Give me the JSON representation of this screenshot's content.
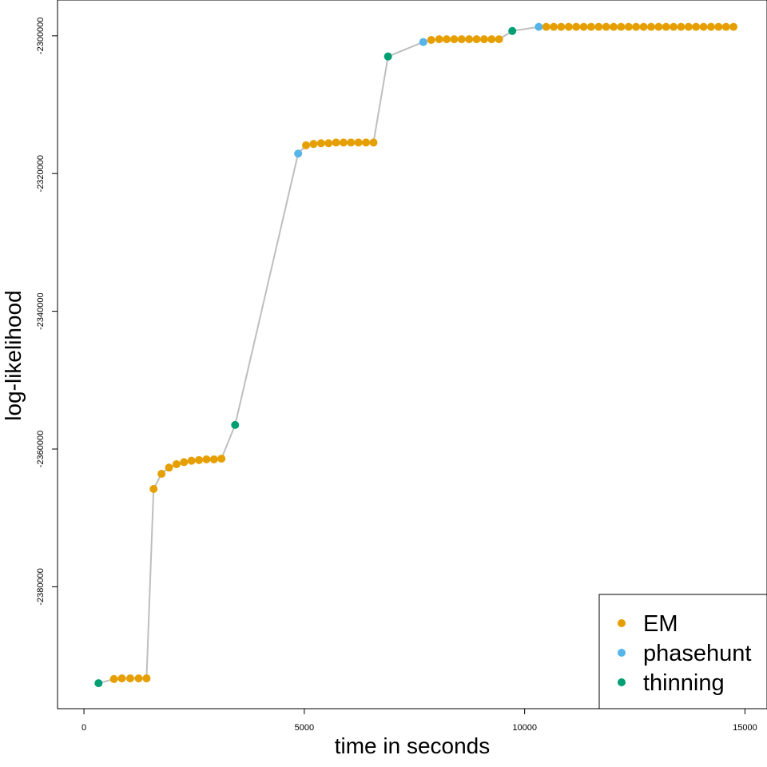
{
  "chart_data": {
    "type": "scatter",
    "title": "",
    "xlabel": "time in seconds",
    "ylabel": "log-likelihood",
    "xlim": [
      -600,
      15500
    ],
    "ylim": [
      -2397700,
      -2294800
    ],
    "x_ticks": [
      0,
      5000,
      10000,
      15000
    ],
    "x_tick_labels": [
      "0",
      "5000",
      "10000",
      "15000"
    ],
    "y_ticks": [
      -2380000,
      -2360000,
      -2340000,
      -2320000,
      -2300000
    ],
    "y_tick_labels": [
      "-2380000",
      "-2360000",
      "-2340000",
      "-2320000",
      "-2300000"
    ],
    "grid": false,
    "legend_position": "bottom-right",
    "connector_color": "#bebebe",
    "series": [
      {
        "name": "EM",
        "color": "#E69F00"
      },
      {
        "name": "phasehunt",
        "color": "#56B4E9"
      },
      {
        "name": "thinning",
        "color": "#009E73"
      }
    ],
    "points": [
      {
        "x": 330,
        "y": -2394000,
        "series": "thinning"
      },
      {
        "x": 680,
        "y": -2393400,
        "series": "EM"
      },
      {
        "x": 860,
        "y": -2393300,
        "series": "EM"
      },
      {
        "x": 1050,
        "y": -2393300,
        "series": "EM"
      },
      {
        "x": 1240,
        "y": -2393300,
        "series": "EM"
      },
      {
        "x": 1420,
        "y": -2393300,
        "series": "EM"
      },
      {
        "x": 1580,
        "y": -2365800,
        "series": "EM"
      },
      {
        "x": 1760,
        "y": -2363600,
        "series": "EM"
      },
      {
        "x": 1930,
        "y": -2362700,
        "series": "EM"
      },
      {
        "x": 2100,
        "y": -2362200,
        "series": "EM"
      },
      {
        "x": 2270,
        "y": -2361900,
        "series": "EM"
      },
      {
        "x": 2440,
        "y": -2361700,
        "series": "EM"
      },
      {
        "x": 2610,
        "y": -2361600,
        "series": "EM"
      },
      {
        "x": 2780,
        "y": -2361500,
        "series": "EM"
      },
      {
        "x": 2950,
        "y": -2361500,
        "series": "EM"
      },
      {
        "x": 3120,
        "y": -2361400,
        "series": "EM"
      },
      {
        "x": 3430,
        "y": -2356500,
        "series": "thinning"
      },
      {
        "x": 4860,
        "y": -2317100,
        "series": "phasehunt"
      },
      {
        "x": 5040,
        "y": -2315900,
        "series": "EM"
      },
      {
        "x": 5210,
        "y": -2315700,
        "series": "EM"
      },
      {
        "x": 5380,
        "y": -2315600,
        "series": "EM"
      },
      {
        "x": 5550,
        "y": -2315600,
        "series": "EM"
      },
      {
        "x": 5720,
        "y": -2315500,
        "series": "EM"
      },
      {
        "x": 5890,
        "y": -2315500,
        "series": "EM"
      },
      {
        "x": 6060,
        "y": -2315500,
        "series": "EM"
      },
      {
        "x": 6230,
        "y": -2315500,
        "series": "EM"
      },
      {
        "x": 6400,
        "y": -2315500,
        "series": "EM"
      },
      {
        "x": 6570,
        "y": -2315500,
        "series": "EM"
      },
      {
        "x": 6900,
        "y": -2303000,
        "series": "thinning"
      },
      {
        "x": 7700,
        "y": -2300900,
        "series": "phasehunt"
      },
      {
        "x": 7880,
        "y": -2300600,
        "series": "EM"
      },
      {
        "x": 8060,
        "y": -2300500,
        "series": "EM"
      },
      {
        "x": 8230,
        "y": -2300500,
        "series": "EM"
      },
      {
        "x": 8400,
        "y": -2300500,
        "series": "EM"
      },
      {
        "x": 8570,
        "y": -2300500,
        "series": "EM"
      },
      {
        "x": 8740,
        "y": -2300500,
        "series": "EM"
      },
      {
        "x": 8910,
        "y": -2300500,
        "series": "EM"
      },
      {
        "x": 9080,
        "y": -2300500,
        "series": "EM"
      },
      {
        "x": 9250,
        "y": -2300500,
        "series": "EM"
      },
      {
        "x": 9420,
        "y": -2300500,
        "series": "EM"
      },
      {
        "x": 9720,
        "y": -2299300,
        "series": "thinning"
      },
      {
        "x": 10320,
        "y": -2298700,
        "series": "phasehunt"
      },
      {
        "x": 10490,
        "y": -2298700,
        "series": "EM"
      },
      {
        "x": 10660,
        "y": -2298700,
        "series": "EM"
      },
      {
        "x": 10830,
        "y": -2298700,
        "series": "EM"
      },
      {
        "x": 11000,
        "y": -2298700,
        "series": "EM"
      },
      {
        "x": 11170,
        "y": -2298700,
        "series": "EM"
      },
      {
        "x": 11340,
        "y": -2298700,
        "series": "EM"
      },
      {
        "x": 11510,
        "y": -2298700,
        "series": "EM"
      },
      {
        "x": 11680,
        "y": -2298700,
        "series": "EM"
      },
      {
        "x": 11850,
        "y": -2298700,
        "series": "EM"
      },
      {
        "x": 12020,
        "y": -2298700,
        "series": "EM"
      },
      {
        "x": 12190,
        "y": -2298700,
        "series": "EM"
      },
      {
        "x": 12360,
        "y": -2298700,
        "series": "EM"
      },
      {
        "x": 12530,
        "y": -2298700,
        "series": "EM"
      },
      {
        "x": 12700,
        "y": -2298700,
        "series": "EM"
      },
      {
        "x": 12870,
        "y": -2298700,
        "series": "EM"
      },
      {
        "x": 13040,
        "y": -2298700,
        "series": "EM"
      },
      {
        "x": 13210,
        "y": -2298700,
        "series": "EM"
      },
      {
        "x": 13380,
        "y": -2298700,
        "series": "EM"
      },
      {
        "x": 13550,
        "y": -2298700,
        "series": "EM"
      },
      {
        "x": 13720,
        "y": -2298700,
        "series": "EM"
      },
      {
        "x": 13890,
        "y": -2298700,
        "series": "EM"
      },
      {
        "x": 14060,
        "y": -2298700,
        "series": "EM"
      },
      {
        "x": 14230,
        "y": -2298700,
        "series": "EM"
      },
      {
        "x": 14400,
        "y": -2298700,
        "series": "EM"
      },
      {
        "x": 14570,
        "y": -2298700,
        "series": "EM"
      },
      {
        "x": 14740,
        "y": -2298700,
        "series": "EM"
      }
    ]
  }
}
